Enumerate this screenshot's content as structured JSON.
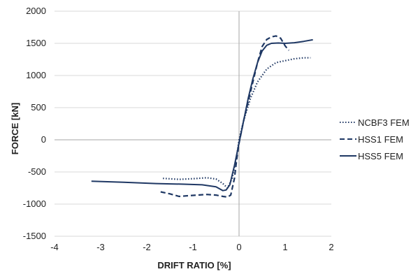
{
  "chart_data": {
    "type": "line",
    "title": "",
    "xlabel": "DRIFT RATIO [%]",
    "ylabel": "FORCE [kN]",
    "xlim": [
      -4,
      2
    ],
    "ylim": [
      -1500,
      2000
    ],
    "xticks": [
      -4,
      -3,
      -2,
      -1,
      0,
      1,
      2
    ],
    "yticks": [
      -1500,
      -1000,
      -500,
      0,
      500,
      1000,
      1500,
      2000
    ],
    "xtick_labels": [
      "-4",
      "-3",
      "-2",
      "-1",
      "0",
      "1",
      "2"
    ],
    "ytick_labels": [
      "-1500",
      "-1000",
      "-500",
      "0",
      "500",
      "1000",
      "1500",
      "2000"
    ],
    "grid": "horizontal",
    "legend_position": "right",
    "line_color": "#1f3864",
    "series": [
      {
        "name": "NCBF3 FEM",
        "style": "dotted",
        "points": [
          [
            -1.65,
            -600
          ],
          [
            -1.3,
            -615
          ],
          [
            -1.0,
            -605
          ],
          [
            -0.7,
            -590
          ],
          [
            -0.5,
            -610
          ],
          [
            -0.35,
            -680
          ],
          [
            -0.25,
            -750
          ],
          [
            -0.15,
            -600
          ],
          [
            -0.05,
            -250
          ],
          [
            0.0,
            0
          ],
          [
            0.1,
            300
          ],
          [
            0.25,
            650
          ],
          [
            0.4,
            900
          ],
          [
            0.6,
            1100
          ],
          [
            0.8,
            1200
          ],
          [
            1.0,
            1230
          ],
          [
            1.2,
            1260
          ],
          [
            1.4,
            1275
          ],
          [
            1.55,
            1275
          ]
        ]
      },
      {
        "name": "HSS1 FEM",
        "style": "dashed",
        "points": [
          [
            -1.7,
            -810
          ],
          [
            -1.5,
            -840
          ],
          [
            -1.3,
            -880
          ],
          [
            -1.1,
            -870
          ],
          [
            -0.9,
            -860
          ],
          [
            -0.7,
            -850
          ],
          [
            -0.5,
            -860
          ],
          [
            -0.35,
            -880
          ],
          [
            -0.25,
            -890
          ],
          [
            -0.18,
            -860
          ],
          [
            -0.1,
            -600
          ],
          [
            -0.05,
            -300
          ],
          [
            0.0,
            -50
          ],
          [
            0.1,
            300
          ],
          [
            0.2,
            600
          ],
          [
            0.3,
            900
          ],
          [
            0.4,
            1200
          ],
          [
            0.5,
            1450
          ],
          [
            0.6,
            1560
          ],
          [
            0.7,
            1600
          ],
          [
            0.8,
            1615
          ],
          [
            0.9,
            1580
          ],
          [
            1.0,
            1460
          ],
          [
            1.08,
            1390
          ]
        ]
      },
      {
        "name": "HSS5 FEM",
        "style": "solid",
        "points": [
          [
            -3.2,
            -645
          ],
          [
            -2.5,
            -660
          ],
          [
            -1.8,
            -680
          ],
          [
            -1.2,
            -690
          ],
          [
            -0.8,
            -700
          ],
          [
            -0.5,
            -730
          ],
          [
            -0.35,
            -790
          ],
          [
            -0.28,
            -780
          ],
          [
            -0.2,
            -700
          ],
          [
            -0.1,
            -400
          ],
          [
            0.0,
            -50
          ],
          [
            0.1,
            300
          ],
          [
            0.2,
            650
          ],
          [
            0.3,
            950
          ],
          [
            0.4,
            1200
          ],
          [
            0.5,
            1380
          ],
          [
            0.6,
            1470
          ],
          [
            0.7,
            1500
          ],
          [
            0.85,
            1505
          ],
          [
            1.0,
            1500
          ],
          [
            1.2,
            1510
          ],
          [
            1.4,
            1530
          ],
          [
            1.6,
            1555
          ]
        ]
      }
    ]
  }
}
